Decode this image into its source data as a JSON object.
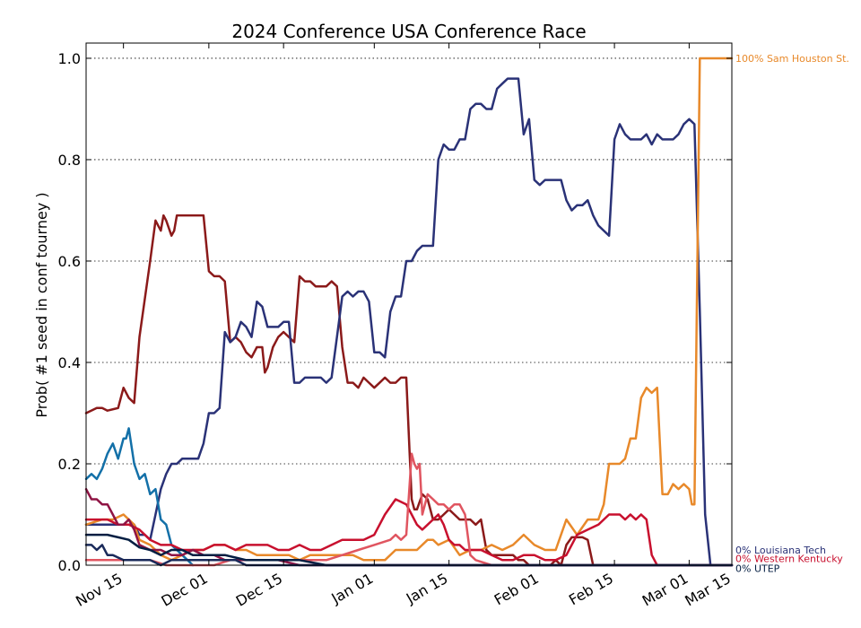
{
  "chart_data": {
    "type": "line",
    "title": "2024 Conference USA Conference Race",
    "xlabel": "",
    "ylabel": "Prob( #1 seed in conf tourney )",
    "xlim": [
      0,
      121
    ],
    "ylim": [
      0,
      1.03
    ],
    "x_ticks": [
      {
        "x": 7,
        "label": "Nov 15"
      },
      {
        "x": 23,
        "label": "Dec 01"
      },
      {
        "x": 37,
        "label": "Dec 15"
      },
      {
        "x": 54,
        "label": "Jan 01"
      },
      {
        "x": 68,
        "label": "Jan 15"
      },
      {
        "x": 85,
        "label": "Feb 01"
      },
      {
        "x": 99,
        "label": "Feb 15"
      },
      {
        "x": 113,
        "label": "Mar 01"
      },
      {
        "x": 127,
        "label": "Mar 15"
      }
    ],
    "y_ticks": [
      0,
      0.2,
      0.4,
      0.6,
      0.8,
      1.0
    ],
    "y_tick_labels": [
      "0.0",
      "0.2",
      "0.4",
      "0.6",
      "0.8",
      "1.0"
    ],
    "grid": "horizontal dotted",
    "end_labels": [
      {
        "text": "100% Sam Houston St.",
        "color": "#e8892a",
        "y": 1.0
      },
      {
        "text": "0% Louisiana Tech",
        "color": "#2a3277",
        "y": 0.03
      },
      {
        "text": "0% Western Kentucky",
        "color": "#c8102e",
        "y": 0.013
      },
      {
        "text": "0% UTEP",
        "color": "#041e42",
        "y": -0.006
      }
    ],
    "series": [
      {
        "color": "#8b1a1a",
        "x": [
          0,
          2,
          3,
          4,
          6,
          7,
          8,
          9,
          10,
          12,
          13,
          14,
          14.5,
          15,
          16,
          16.5,
          17,
          18,
          18.5,
          19,
          21,
          22,
          23,
          24,
          25,
          26,
          27,
          28,
          29,
          30,
          31,
          32,
          33,
          33.5,
          34,
          35,
          36,
          37,
          38,
          39,
          40,
          41,
          42,
          43,
          44,
          45,
          46,
          47,
          48,
          49,
          50,
          51,
          52,
          53,
          54,
          55,
          56,
          57,
          58,
          59,
          60,
          61,
          61.5,
          62,
          63,
          64,
          65,
          66,
          67,
          68,
          69,
          70,
          71,
          72,
          73,
          74,
          75,
          76,
          77,
          78,
          79,
          80,
          81,
          82,
          83,
          84,
          85,
          86,
          87,
          88,
          89,
          90,
          91,
          92,
          93,
          94,
          95,
          96,
          97,
          98,
          99,
          100,
          101,
          102,
          103,
          104,
          105,
          106,
          121
        ],
        "values": [
          0.3,
          0.31,
          0.31,
          0.305,
          0.31,
          0.35,
          0.33,
          0.32,
          0.45,
          0.6,
          0.68,
          0.66,
          0.69,
          0.68,
          0.65,
          0.66,
          0.69,
          0.69,
          0.69,
          0.69,
          0.69,
          0.69,
          0.58,
          0.57,
          0.57,
          0.56,
          0.44,
          0.45,
          0.44,
          0.42,
          0.41,
          0.43,
          0.43,
          0.38,
          0.39,
          0.43,
          0.45,
          0.46,
          0.45,
          0.44,
          0.57,
          0.56,
          0.56,
          0.55,
          0.55,
          0.55,
          0.56,
          0.55,
          0.43,
          0.36,
          0.36,
          0.35,
          0.37,
          0.36,
          0.35,
          0.36,
          0.37,
          0.36,
          0.36,
          0.37,
          0.37,
          0.13,
          0.11,
          0.11,
          0.14,
          0.13,
          0.09,
          0.09,
          0.1,
          0.11,
          0.1,
          0.09,
          0.09,
          0.09,
          0.08,
          0.09,
          0.03,
          0.02,
          0.02,
          0.02,
          0.02,
          0.02,
          0.01,
          0.01,
          0.0,
          0.0,
          0.0,
          0.0,
          0.0,
          0.01,
          0.0,
          0.04,
          0.055,
          0.055,
          0.055,
          0.05,
          0.0,
          0.0,
          0.0,
          0.0,
          0.0,
          0.0,
          0.0,
          0.0,
          0.0,
          0.0,
          0.0,
          0.0,
          0.0
        ]
      },
      {
        "color": "#2a3277",
        "x": [
          0,
          3,
          6,
          9,
          10,
          11,
          12,
          13,
          14,
          15,
          16,
          17,
          18,
          19,
          21,
          22,
          23,
          24,
          25,
          26,
          27,
          28,
          29,
          30,
          31,
          32,
          33,
          34,
          35,
          36,
          37,
          38,
          39,
          40,
          41,
          42,
          43,
          44,
          45,
          46,
          47,
          48,
          49,
          50,
          51,
          52,
          53,
          54,
          55,
          56,
          57,
          58,
          59,
          60,
          61,
          62,
          63,
          64,
          65,
          66,
          67,
          68,
          69,
          70,
          71,
          72,
          73,
          74,
          75,
          76,
          77,
          78,
          79,
          80,
          81,
          82,
          83,
          84,
          85,
          86,
          87,
          88,
          89,
          90,
          91,
          92,
          93,
          94,
          95,
          96,
          97,
          98,
          99,
          100,
          101,
          102,
          103,
          104,
          105,
          106,
          107,
          108,
          109,
          110,
          111,
          112,
          113,
          114,
          115,
          116,
          117,
          117.5,
          118,
          121
        ],
        "values": [
          0.08,
          0.08,
          0.08,
          0.08,
          0.06,
          0.06,
          0.05,
          0.1,
          0.15,
          0.18,
          0.2,
          0.2,
          0.21,
          0.21,
          0.21,
          0.24,
          0.3,
          0.3,
          0.31,
          0.46,
          0.44,
          0.45,
          0.48,
          0.47,
          0.45,
          0.52,
          0.51,
          0.47,
          0.47,
          0.47,
          0.48,
          0.48,
          0.36,
          0.36,
          0.37,
          0.37,
          0.37,
          0.37,
          0.36,
          0.37,
          0.45,
          0.53,
          0.54,
          0.53,
          0.54,
          0.54,
          0.52,
          0.42,
          0.42,
          0.41,
          0.5,
          0.53,
          0.53,
          0.6,
          0.6,
          0.62,
          0.63,
          0.63,
          0.63,
          0.8,
          0.83,
          0.82,
          0.82,
          0.84,
          0.84,
          0.9,
          0.91,
          0.91,
          0.9,
          0.9,
          0.94,
          0.95,
          0.96,
          0.96,
          0.96,
          0.85,
          0.88,
          0.76,
          0.75,
          0.76,
          0.76,
          0.76,
          0.76,
          0.72,
          0.7,
          0.71,
          0.71,
          0.72,
          0.69,
          0.67,
          0.66,
          0.65,
          0.84,
          0.87,
          0.85,
          0.84,
          0.84,
          0.84,
          0.85,
          0.83,
          0.85,
          0.84,
          0.84,
          0.84,
          0.85,
          0.87,
          0.88,
          0.87,
          0.5,
          0.1,
          0.0,
          0.0,
          0.0,
          0.0
        ]
      },
      {
        "color": "#1370a8",
        "x": [
          0,
          1,
          2,
          3,
          4,
          5,
          6,
          7,
          7.5,
          8,
          9,
          10,
          11,
          12,
          13,
          14,
          15,
          16,
          17,
          18,
          19,
          20
        ],
        "values": [
          0.17,
          0.18,
          0.17,
          0.19,
          0.22,
          0.24,
          0.21,
          0.25,
          0.25,
          0.27,
          0.2,
          0.17,
          0.18,
          0.14,
          0.15,
          0.09,
          0.08,
          0.04,
          0.03,
          0.02,
          0.01,
          0.0
        ]
      },
      {
        "color": "#e8892a",
        "x": [
          0,
          3,
          5,
          7,
          9,
          10,
          12,
          14,
          16,
          18,
          20,
          22,
          24,
          26,
          28,
          30,
          32,
          34,
          36,
          38,
          40,
          42,
          44,
          46,
          48,
          50,
          52,
          54,
          56,
          58,
          60,
          62,
          64,
          65,
          66,
          68,
          70,
          72,
          74,
          76,
          78,
          80,
          82,
          84,
          86,
          88,
          90,
          92,
          94,
          96,
          97,
          98,
          99,
          100,
          101,
          102,
          103,
          104,
          105,
          106,
          107,
          108,
          109,
          110,
          111,
          112,
          113,
          113.5,
          114,
          115,
          116,
          117,
          118,
          119,
          119.5,
          120,
          121
        ],
        "values": [
          0.08,
          0.09,
          0.09,
          0.1,
          0.08,
          0.05,
          0.04,
          0.02,
          0.01,
          0.02,
          0.03,
          0.03,
          0.04,
          0.04,
          0.03,
          0.03,
          0.02,
          0.02,
          0.02,
          0.02,
          0.01,
          0.02,
          0.02,
          0.02,
          0.02,
          0.02,
          0.01,
          0.01,
          0.01,
          0.03,
          0.03,
          0.03,
          0.05,
          0.05,
          0.04,
          0.05,
          0.02,
          0.03,
          0.03,
          0.04,
          0.03,
          0.04,
          0.06,
          0.04,
          0.03,
          0.03,
          0.09,
          0.06,
          0.09,
          0.09,
          0.12,
          0.2,
          0.2,
          0.2,
          0.21,
          0.25,
          0.25,
          0.33,
          0.35,
          0.34,
          0.35,
          0.14,
          0.14,
          0.16,
          0.15,
          0.16,
          0.15,
          0.12,
          0.12,
          1.0,
          1.0,
          1.0,
          1.0,
          1.0,
          1.0,
          1.0,
          1.0
        ]
      },
      {
        "color": "#c8102e",
        "x": [
          0,
          2,
          4,
          6,
          8,
          10,
          12,
          14,
          16,
          18,
          20,
          22,
          24,
          26,
          28,
          30,
          32,
          34,
          36,
          38,
          40,
          42,
          44,
          46,
          48,
          50,
          52,
          54,
          56,
          58,
          60,
          61,
          62,
          63,
          64,
          65,
          66,
          67,
          68,
          69,
          70,
          71,
          72,
          74,
          76,
          78,
          80,
          82,
          84,
          86,
          88,
          90,
          92,
          94,
          96,
          97,
          98,
          99,
          100,
          101,
          102,
          103,
          104,
          105,
          106,
          107,
          108,
          121
        ],
        "values": [
          0.09,
          0.09,
          0.09,
          0.08,
          0.08,
          0.07,
          0.05,
          0.04,
          0.04,
          0.03,
          0.03,
          0.03,
          0.04,
          0.04,
          0.03,
          0.04,
          0.04,
          0.04,
          0.03,
          0.03,
          0.04,
          0.03,
          0.03,
          0.04,
          0.05,
          0.05,
          0.05,
          0.06,
          0.1,
          0.13,
          0.12,
          0.1,
          0.08,
          0.07,
          0.08,
          0.09,
          0.1,
          0.08,
          0.05,
          0.04,
          0.04,
          0.03,
          0.03,
          0.03,
          0.02,
          0.01,
          0.01,
          0.02,
          0.02,
          0.01,
          0.01,
          0.02,
          0.06,
          0.07,
          0.08,
          0.09,
          0.1,
          0.1,
          0.1,
          0.09,
          0.1,
          0.09,
          0.1,
          0.09,
          0.02,
          0.0,
          0.0,
          0.0
        ]
      },
      {
        "color": "#e05560",
        "x": [
          0,
          3,
          6,
          9,
          12,
          15,
          18,
          21,
          24,
          27,
          30,
          33,
          36,
          39,
          42,
          45,
          48,
          51,
          54,
          57,
          58,
          59,
          60,
          61,
          61.5,
          62,
          62.5,
          63,
          64,
          65,
          66,
          67,
          68,
          69,
          70,
          71,
          72,
          73,
          76,
          80,
          85,
          90,
          121
        ],
        "values": [
          0.01,
          0.01,
          0.01,
          0.01,
          0.01,
          0.0,
          0.0,
          0.0,
          0.0,
          0.01,
          0.01,
          0.01,
          0.01,
          0.01,
          0.01,
          0.01,
          0.02,
          0.03,
          0.04,
          0.05,
          0.06,
          0.05,
          0.06,
          0.22,
          0.2,
          0.19,
          0.2,
          0.1,
          0.14,
          0.13,
          0.12,
          0.12,
          0.11,
          0.12,
          0.12,
          0.1,
          0.02,
          0.01,
          0.0,
          0.0,
          0.0,
          0.0,
          0.0
        ]
      },
      {
        "color": "#8f1444",
        "x": [
          0,
          1,
          2,
          3,
          4,
          5,
          6,
          7,
          8,
          9,
          10,
          12,
          14,
          16,
          18,
          20,
          22,
          24,
          26,
          28,
          30,
          33,
          36,
          40,
          45,
          50,
          55,
          60,
          70,
          80,
          121
        ],
        "values": [
          0.15,
          0.13,
          0.13,
          0.12,
          0.12,
          0.1,
          0.08,
          0.08,
          0.09,
          0.07,
          0.04,
          0.03,
          0.03,
          0.02,
          0.02,
          0.03,
          0.02,
          0.02,
          0.01,
          0.01,
          0.01,
          0.01,
          0.01,
          0.0,
          0.0,
          0.0,
          0.0,
          0.0,
          0.0,
          0.0,
          0.0
        ]
      },
      {
        "color": "#041e42",
        "x": [
          0,
          2,
          4,
          6,
          8,
          10,
          12,
          14,
          16,
          18,
          20,
          22,
          24,
          26,
          28,
          30,
          33,
          36,
          40,
          45,
          50,
          55,
          60,
          65,
          70,
          75,
          80,
          85,
          90,
          95,
          100,
          110,
          121
        ],
        "values": [
          0.06,
          0.06,
          0.06,
          0.055,
          0.05,
          0.035,
          0.03,
          0.02,
          0.03,
          0.03,
          0.02,
          0.02,
          0.02,
          0.02,
          0.015,
          0.01,
          0.01,
          0.01,
          0.01,
          0.0,
          0.0,
          0.0,
          0.0,
          0.0,
          0.0,
          0.0,
          0.0,
          0.0,
          0.0,
          0.0,
          0.0,
          0.0,
          0.0
        ]
      },
      {
        "color": "#1a2a5a",
        "x": [
          0,
          1,
          2,
          3,
          4,
          5,
          6,
          7,
          8,
          9,
          10,
          12,
          14,
          16,
          18,
          20,
          22,
          24,
          26,
          28,
          30,
          35,
          40,
          50,
          60,
          121
        ],
        "values": [
          0.04,
          0.04,
          0.03,
          0.04,
          0.02,
          0.02,
          0.015,
          0.01,
          0.01,
          0.01,
          0.01,
          0.01,
          0.0,
          0.01,
          0.01,
          0.01,
          0.01,
          0.01,
          0.01,
          0.01,
          0.0,
          0.0,
          0.0,
          0.0,
          0.0,
          0.0
        ]
      }
    ]
  }
}
